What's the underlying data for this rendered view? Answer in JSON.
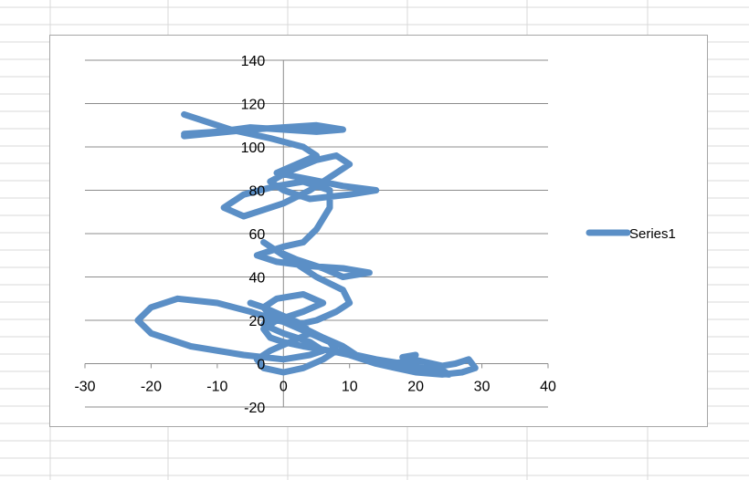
{
  "sheet": {
    "grid_color": "#d9d9d9"
  },
  "chart_data": {
    "type": "scatter",
    "title": "",
    "xlabel": "",
    "ylabel": "",
    "xlim": [
      -30,
      40
    ],
    "ylim": [
      -20,
      140
    ],
    "x_ticks": [
      -30,
      -20,
      -10,
      0,
      10,
      20,
      30,
      40
    ],
    "y_ticks": [
      -20,
      0,
      20,
      40,
      60,
      80,
      100,
      120,
      140
    ],
    "x_tick_labels": [
      "-30",
      "-20",
      "-10",
      "0",
      "10",
      "20",
      "30",
      "40"
    ],
    "y_tick_labels": [
      "-20",
      "0",
      "20",
      "40",
      "60",
      "80",
      "100",
      "120",
      "140"
    ],
    "grid": true,
    "legend": "right",
    "series": [
      {
        "name": "Series1",
        "color": "#5b8fc6",
        "x": [
          -15,
          -8,
          -2,
          3,
          5,
          2,
          -1,
          4,
          9,
          14,
          10,
          4,
          0,
          -2,
          1,
          5,
          8,
          10,
          7,
          4,
          0,
          -4,
          -6,
          -9,
          -6,
          -1,
          3,
          7,
          7,
          5,
          3,
          0,
          -2,
          -4,
          -1,
          4,
          9,
          13,
          9,
          6,
          2,
          -1,
          -3,
          -1,
          2,
          5,
          9,
          10,
          8,
          5,
          2,
          -1,
          -5,
          -10,
          -16,
          -20,
          -22,
          -20,
          -14,
          -6,
          0,
          4,
          6,
          4,
          0,
          -3,
          -2,
          2,
          6,
          9,
          11,
          14,
          18,
          21,
          24,
          25,
          22,
          18,
          15,
          14,
          11,
          8,
          10,
          13,
          16,
          19,
          20,
          18,
          21,
          24,
          26,
          28,
          29,
          27,
          24,
          20,
          17,
          14,
          12,
          10,
          7,
          3,
          0,
          -2,
          -3,
          -1,
          3,
          6,
          3,
          -1,
          -3,
          -2,
          1,
          4,
          7,
          8,
          6,
          3,
          0,
          -3,
          -4,
          -2,
          1,
          4,
          3,
          0,
          -3,
          -5
        ],
        "y": [
          115,
          108,
          104,
          100,
          96,
          92,
          88,
          85,
          82,
          80,
          78,
          76,
          80,
          84,
          89,
          94,
          96,
          92,
          86,
          80,
          74,
          70,
          68,
          72,
          78,
          82,
          84,
          80,
          72,
          62,
          56,
          54,
          52,
          50,
          47,
          45,
          44,
          42,
          40,
          44,
          48,
          52,
          56,
          52,
          46,
          40,
          34,
          28,
          24,
          20,
          18,
          20,
          24,
          28,
          30,
          26,
          20,
          14,
          8,
          4,
          2,
          4,
          6,
          10,
          14,
          18,
          22,
          18,
          12,
          8,
          4,
          2,
          0,
          -2,
          -3,
          -5,
          -4,
          -2,
          0,
          2,
          4,
          6,
          4,
          2,
          0,
          1,
          4,
          3,
          1,
          -1,
          0,
          2,
          -2,
          -4,
          -5,
          -4,
          -2,
          0,
          2,
          4,
          6,
          8,
          10,
          12,
          16,
          20,
          24,
          28,
          32,
          30,
          26,
          22,
          18,
          14,
          10,
          6,
          2,
          -2,
          -4,
          -2,
          2,
          6,
          10,
          14,
          18,
          22,
          26,
          28
        ]
      },
      {
        "name": "",
        "color": "#5b8fc6",
        "x": [
          -15,
          -5,
          5,
          9,
          5,
          0,
          -5,
          -10,
          -15
        ],
        "y": [
          105,
          108,
          110,
          108,
          107,
          108,
          109,
          107,
          106
        ]
      }
    ]
  }
}
